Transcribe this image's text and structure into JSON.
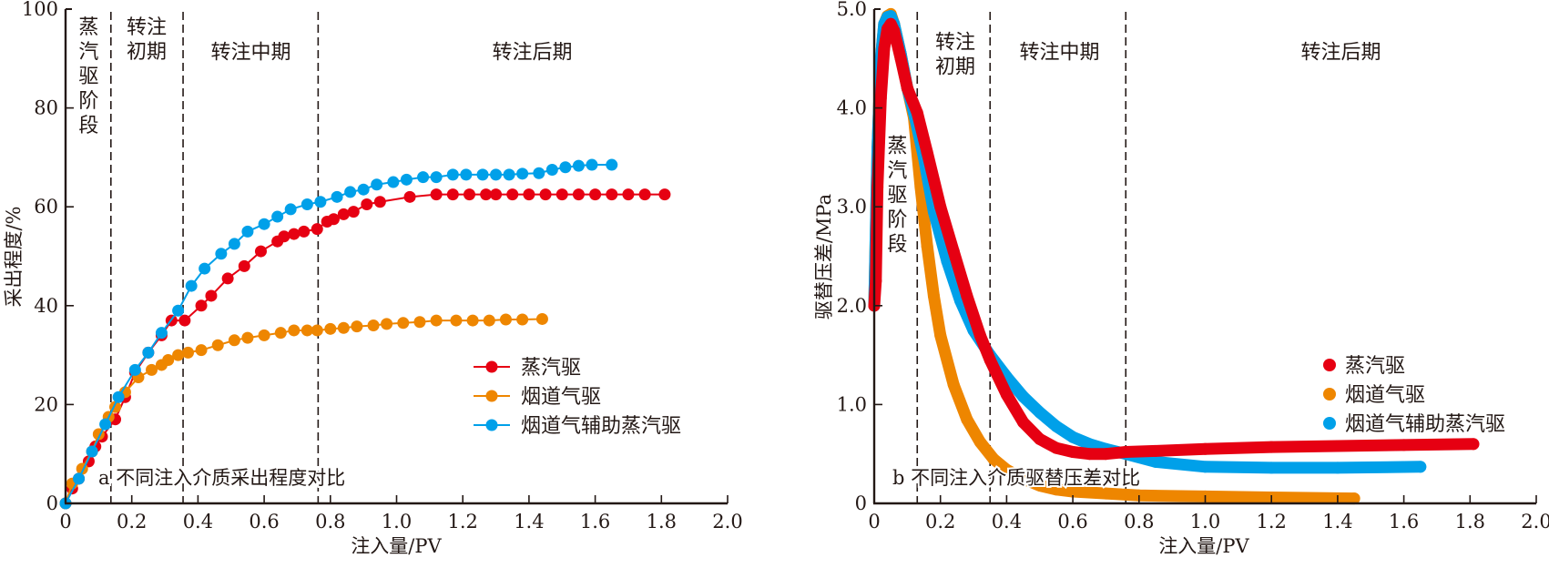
{
  "chart_data": [
    {
      "id": "a",
      "type": "line",
      "title": "",
      "caption": "a 不同注入介质采出程度对比",
      "xlabel": "注入量/PV",
      "ylabel": "采出程度/%",
      "xlim": [
        0,
        2.0
      ],
      "ylim": [
        0,
        100
      ],
      "xticks": [
        0,
        0.2,
        0.4,
        0.6,
        0.8,
        1.0,
        1.2,
        1.4,
        1.6,
        1.8,
        2.0
      ],
      "xtick_labels": [
        "0",
        "0.2",
        "0.4",
        "0.6",
        "0.8",
        "1.0",
        "1.2",
        "1.4",
        "1.6",
        "1.8",
        "2.0"
      ],
      "yticks": [
        0,
        20,
        40,
        60,
        80,
        100
      ],
      "ytick_labels": [
        "0",
        "20",
        "40",
        "60",
        "80",
        "100"
      ],
      "grid": false,
      "legend_position": "bottom-right",
      "stage_boundaries": [
        0.137,
        0.355,
        0.763
      ],
      "stages": [
        {
          "label": "蒸汽驱阶段",
          "vertical": true,
          "x": 0.07,
          "y": 95
        },
        {
          "label": "转注初期",
          "wrap": [
            "转注",
            "初期"
          ],
          "x": 0.245,
          "y": 95
        },
        {
          "label": "转注中期",
          "x": 0.56,
          "y": 90
        },
        {
          "label": "转注后期",
          "x": 1.41,
          "y": 90
        }
      ],
      "series": [
        {
          "name": "蒸汽驱",
          "color": "#e60012",
          "marker": "circle",
          "x": [
            0,
            0.02,
            0.04,
            0.07,
            0.09,
            0.11,
            0.15,
            0.18,
            0.21,
            0.25,
            0.29,
            0.32,
            0.36,
            0.41,
            0.44,
            0.49,
            0.54,
            0.59,
            0.64,
            0.66,
            0.69,
            0.72,
            0.76,
            0.79,
            0.81,
            0.84,
            0.87,
            0.91,
            0.95,
            1.04,
            1.12,
            1.17,
            1.22,
            1.27,
            1.3,
            1.35,
            1.4,
            1.45,
            1.5,
            1.55,
            1.6,
            1.65,
            1.7,
            1.75,
            1.81
          ],
          "y": [
            0,
            3.0,
            5.0,
            8.5,
            11.5,
            13.5,
            17.0,
            21.5,
            26.5,
            30.5,
            34.0,
            37.0,
            37.0,
            40.0,
            42.0,
            45.5,
            48.0,
            51.0,
            53.0,
            54.0,
            54.5,
            55.0,
            55.5,
            57.0,
            57.5,
            58.5,
            59.0,
            60.5,
            61.0,
            62.0,
            62.5,
            62.5,
            62.5,
            62.5,
            62.5,
            62.5,
            62.5,
            62.5,
            62.5,
            62.5,
            62.5,
            62.5,
            62.5,
            62.5,
            62.5
          ]
        },
        {
          "name": "烟道气驱",
          "color": "#ee8600",
          "marker": "circle",
          "x": [
            0,
            0.02,
            0.05,
            0.08,
            0.1,
            0.13,
            0.15,
            0.18,
            0.22,
            0.26,
            0.29,
            0.31,
            0.34,
            0.37,
            0.41,
            0.46,
            0.51,
            0.55,
            0.6,
            0.65,
            0.69,
            0.73,
            0.76,
            0.8,
            0.84,
            0.88,
            0.93,
            0.97,
            1.02,
            1.07,
            1.12,
            1.18,
            1.23,
            1.28,
            1.33,
            1.38,
            1.44
          ],
          "y": [
            0,
            4.0,
            7.0,
            10.5,
            14.0,
            17.5,
            19.5,
            22.5,
            25.5,
            27.0,
            28.0,
            29.0,
            30.0,
            30.5,
            31.0,
            32.0,
            33.0,
            33.5,
            34.0,
            34.5,
            35.0,
            35.0,
            35.0,
            35.3,
            35.5,
            35.8,
            36.0,
            36.3,
            36.5,
            36.7,
            37.0,
            37.0,
            37.0,
            37.0,
            37.2,
            37.2,
            37.3
          ]
        },
        {
          "name": "烟道气辅助蒸汽驱",
          "color": "#00a0e9",
          "marker": "circle",
          "x": [
            0,
            0.04,
            0.08,
            0.12,
            0.16,
            0.21,
            0.25,
            0.29,
            0.34,
            0.38,
            0.42,
            0.47,
            0.51,
            0.55,
            0.6,
            0.64,
            0.68,
            0.73,
            0.77,
            0.82,
            0.86,
            0.9,
            0.94,
            0.99,
            1.03,
            1.08,
            1.12,
            1.17,
            1.21,
            1.26,
            1.3,
            1.34,
            1.38,
            1.43,
            1.47,
            1.51,
            1.55,
            1.59,
            1.65
          ],
          "y": [
            0,
            5.0,
            10.5,
            16.0,
            21.5,
            27.0,
            30.5,
            34.5,
            39.0,
            44.0,
            47.5,
            50.5,
            52.5,
            55.0,
            56.5,
            58.0,
            59.5,
            60.5,
            61.0,
            62.0,
            63.0,
            63.5,
            64.5,
            65.0,
            65.5,
            66.0,
            66.0,
            66.5,
            66.5,
            66.5,
            66.5,
            66.5,
            66.7,
            66.8,
            67.5,
            68.0,
            68.3,
            68.5,
            68.5
          ]
        }
      ]
    },
    {
      "id": "b",
      "type": "scatter",
      "title": "",
      "caption": "b 不同注入介质驱替压差对比",
      "xlabel": "注入量/PV",
      "ylabel": "驱替压差/MPa",
      "xlim": [
        0,
        2.0
      ],
      "ylim": [
        0,
        5.0
      ],
      "xticks": [
        0,
        0.2,
        0.4,
        0.6,
        0.8,
        1.0,
        1.2,
        1.4,
        1.6,
        1.8,
        2.0
      ],
      "xtick_labels": [
        "0",
        "0.2",
        "0.4",
        "0.6",
        "0.8",
        "1.0",
        "1.2",
        "1.4",
        "1.6",
        "1.8",
        "2.0"
      ],
      "yticks": [
        0,
        1.0,
        2.0,
        3.0,
        4.0,
        5.0
      ],
      "ytick_labels": [
        "0",
        "1.0",
        "2.0",
        "3.0",
        "4.0",
        "5.0"
      ],
      "grid": false,
      "legend_position": "right",
      "stage_boundaries": [
        0.13,
        0.35,
        0.76
      ],
      "stages": [
        {
          "label": "蒸汽驱阶段",
          "vertical": true,
          "x": 0.07,
          "y": 3.55
        },
        {
          "label": "转注初期",
          "wrap": [
            "转注",
            "初期"
          ],
          "x": 0.245,
          "y": 4.6
        },
        {
          "label": "转注中期",
          "x": 0.56,
          "y": 4.5
        },
        {
          "label": "转注后期",
          "x": 1.41,
          "y": 4.5
        }
      ],
      "series": [
        {
          "name": "蒸汽驱",
          "color": "#e60012",
          "marker": "circle",
          "x": [
            0,
            0.005,
            0.01,
            0.02,
            0.03,
            0.04,
            0.05,
            0.06,
            0.08,
            0.1,
            0.13,
            0.16,
            0.2,
            0.24,
            0.28,
            0.32,
            0.35,
            0.4,
            0.45,
            0.5,
            0.55,
            0.6,
            0.65,
            0.7,
            0.76,
            0.85,
            1.0,
            1.2,
            1.4,
            1.6,
            1.81
          ],
          "y": [
            2.0,
            2.25,
            3.2,
            4.1,
            4.6,
            4.8,
            4.85,
            4.78,
            4.5,
            4.2,
            3.95,
            3.55,
            3.0,
            2.55,
            2.1,
            1.7,
            1.45,
            1.1,
            0.82,
            0.65,
            0.56,
            0.52,
            0.5,
            0.5,
            0.52,
            0.53,
            0.55,
            0.57,
            0.58,
            0.59,
            0.6
          ]
        },
        {
          "name": "烟道气驱",
          "color": "#ee8600",
          "marker": "circle",
          "x": [
            0,
            0.01,
            0.02,
            0.03,
            0.04,
            0.05,
            0.06,
            0.08,
            0.1,
            0.12,
            0.14,
            0.16,
            0.18,
            0.2,
            0.24,
            0.28,
            0.32,
            0.36,
            0.4,
            0.45,
            0.5,
            0.55,
            0.6,
            0.7,
            0.8,
            1.0,
            1.2,
            1.45
          ],
          "y": [
            2.0,
            3.6,
            4.5,
            4.85,
            4.93,
            4.95,
            4.85,
            4.55,
            4.2,
            3.9,
            3.2,
            2.6,
            2.1,
            1.7,
            1.2,
            0.85,
            0.62,
            0.45,
            0.34,
            0.25,
            0.18,
            0.14,
            0.12,
            0.1,
            0.08,
            0.07,
            0.06,
            0.05
          ]
        },
        {
          "name": "烟道气辅助蒸汽驱",
          "color": "#00a0e9",
          "marker": "circle",
          "x": [
            0,
            0.01,
            0.02,
            0.03,
            0.04,
            0.05,
            0.06,
            0.08,
            0.1,
            0.12,
            0.15,
            0.18,
            0.22,
            0.26,
            0.3,
            0.35,
            0.4,
            0.45,
            0.5,
            0.55,
            0.6,
            0.65,
            0.7,
            0.76,
            0.85,
            1.0,
            1.2,
            1.4,
            1.65
          ],
          "y": [
            2.0,
            3.6,
            4.5,
            4.85,
            4.92,
            4.93,
            4.85,
            4.55,
            4.2,
            3.95,
            3.5,
            2.95,
            2.45,
            2.05,
            1.75,
            1.5,
            1.28,
            1.08,
            0.92,
            0.78,
            0.67,
            0.6,
            0.55,
            0.5,
            0.42,
            0.37,
            0.36,
            0.36,
            0.37
          ]
        }
      ]
    }
  ]
}
